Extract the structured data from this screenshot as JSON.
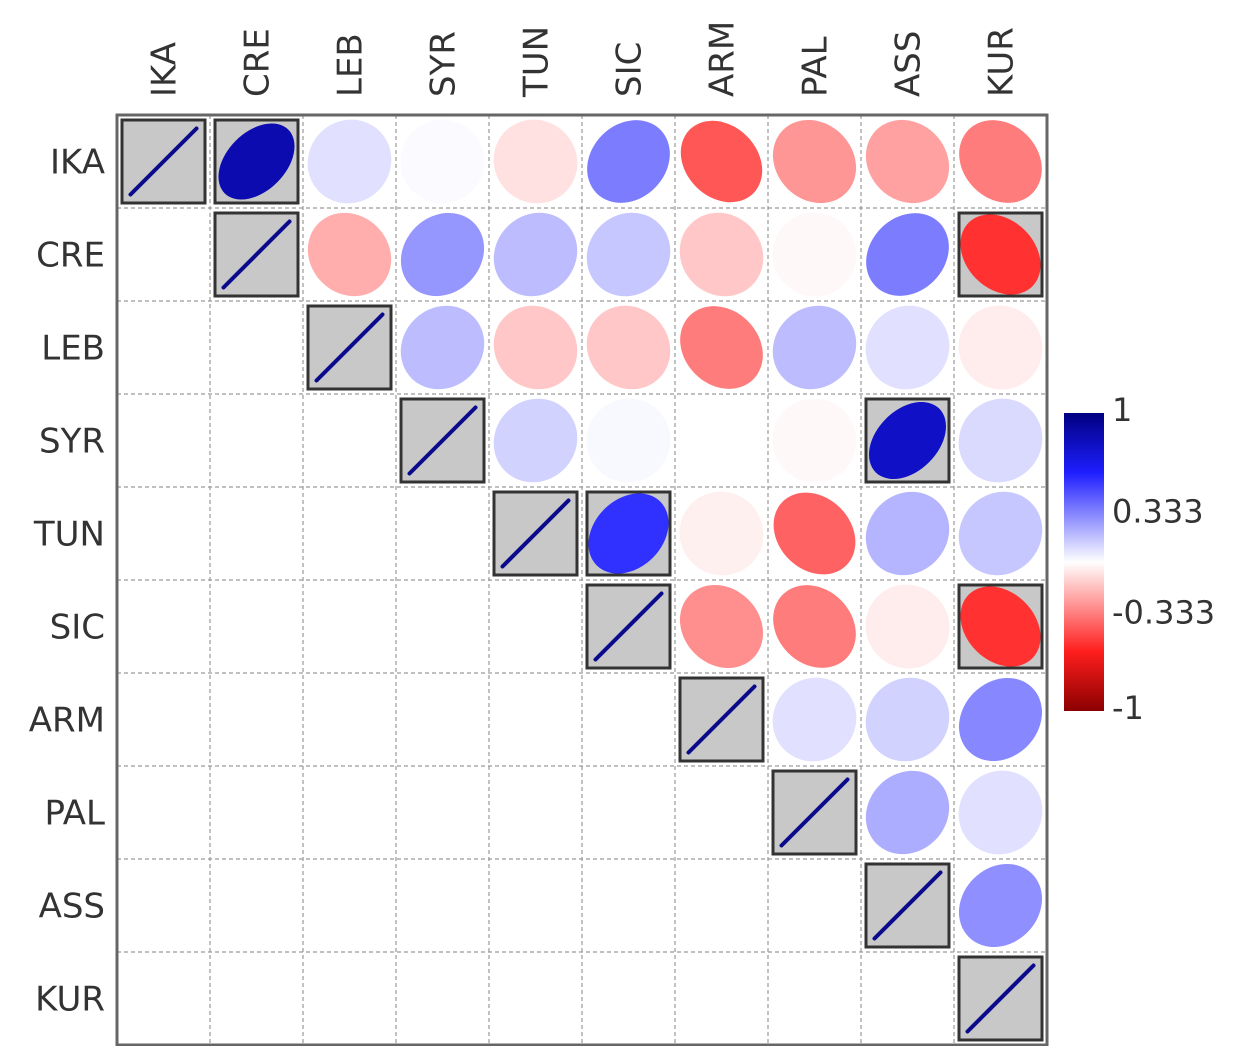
{
  "chart_data": {
    "type": "heatmap",
    "subtype": "correlation-ellipse",
    "shape": "upper-triangle",
    "title": "",
    "labels": [
      "IKA",
      "CRE",
      "LEB",
      "SYR",
      "TUN",
      "SIC",
      "ARM",
      "PAL",
      "ASS",
      "KUR"
    ],
    "matrix": [
      [
        1.0,
        0.85,
        0.08,
        0.01,
        -0.08,
        0.35,
        -0.45,
        -0.28,
        -0.25,
        -0.35
      ],
      [
        null,
        1.0,
        -0.22,
        0.28,
        0.18,
        0.15,
        -0.15,
        -0.02,
        0.35,
        -0.55
      ],
      [
        null,
        null,
        1.0,
        0.18,
        -0.15,
        -0.15,
        -0.35,
        0.18,
        0.08,
        -0.05
      ],
      [
        null,
        null,
        null,
        1.0,
        0.12,
        0.02,
        0.0,
        -0.02,
        0.78,
        0.1
      ],
      [
        null,
        null,
        null,
        null,
        1.0,
        0.55,
        -0.04,
        -0.42,
        0.2,
        0.15
      ],
      [
        null,
        null,
        null,
        null,
        null,
        1.0,
        -0.3,
        -0.35,
        -0.05,
        -0.55
      ],
      [
        null,
        null,
        null,
        null,
        null,
        null,
        1.0,
        0.08,
        0.12,
        0.32
      ],
      [
        null,
        null,
        null,
        null,
        null,
        null,
        null,
        1.0,
        0.22,
        0.08
      ],
      [
        null,
        null,
        null,
        null,
        null,
        null,
        null,
        null,
        1.0,
        0.3
      ],
      [
        null,
        null,
        null,
        null,
        null,
        null,
        null,
        null,
        null,
        1.0
      ]
    ],
    "highlighted_cells": [
      [
        "IKA",
        "CRE"
      ],
      [
        "CRE",
        "KUR"
      ],
      [
        "SYR",
        "ASS"
      ],
      [
        "TUN",
        "SIC"
      ],
      [
        "SIC",
        "KUR"
      ]
    ],
    "colorbar": {
      "range": [
        -1,
        1
      ],
      "ticks": [
        "1",
        "0.333",
        "-0.333",
        "-1"
      ],
      "colors": {
        "strong_negative": "#8b0000",
        "negative": "#ff1e1e",
        "neutral": "#ffffff",
        "positive": "#1e1eff",
        "strong_positive": "#000080"
      }
    },
    "grid": "dashed",
    "diagonal_fill": "#c8c8c8",
    "diagonal_line_color": "#0a0a8c"
  }
}
